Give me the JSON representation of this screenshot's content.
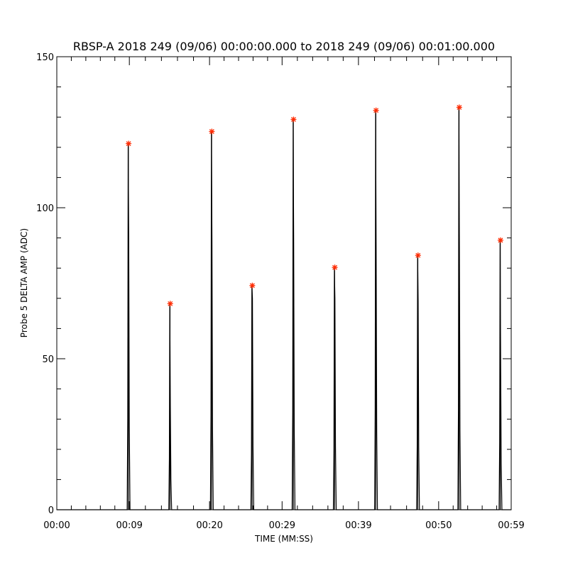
{
  "chart_data": {
    "type": "line",
    "title": "RBSP-A 2018 249 (09/06) 00:00:00.000 to 2018 249 (09/06) 00:01:00.000",
    "xlabel": "TIME (MM:SS)",
    "ylabel": "Probe 5 DELTA AMP (ADC)",
    "xlim_seconds": [
      0,
      59.5
    ],
    "ylim": [
      0,
      150
    ],
    "x_ticks": [
      {
        "value": 0,
        "label": "00:00"
      },
      {
        "value": 9.5,
        "label": "00:09"
      },
      {
        "value": 20,
        "label": "00:20"
      },
      {
        "value": 29.5,
        "label": "00:29"
      },
      {
        "value": 39.5,
        "label": "00:39"
      },
      {
        "value": 50,
        "label": "00:50"
      },
      {
        "value": 59.5,
        "label": "00:59"
      }
    ],
    "y_ticks": [
      0,
      50,
      100,
      150
    ],
    "y_minor_step": 10,
    "grid": false,
    "series": [
      {
        "values_desc": "pulse trace",
        "color": "#000000",
        "pulses": [
          {
            "t": 9.4,
            "peak": 121,
            "second": 91
          },
          {
            "t": 14.85,
            "peak": 68,
            "second": 34
          },
          {
            "t": 20.3,
            "peak": 125,
            "second": 89
          },
          {
            "t": 25.6,
            "peak": 74,
            "second": 70
          },
          {
            "t": 31.0,
            "peak": 129,
            "second": 88
          },
          {
            "t": 36.4,
            "peak": 80,
            "second": 70
          },
          {
            "t": 41.8,
            "peak": 132,
            "second": 86
          },
          {
            "t": 47.3,
            "peak": 84,
            "second": 69
          },
          {
            "t": 52.7,
            "peak": 133,
            "second": 87
          },
          {
            "t": 58.1,
            "peak": 89,
            "second": 50
          }
        ]
      },
      {
        "values_desc": "peak markers",
        "color": "#ff2a00",
        "marker": "asterisk",
        "points": [
          {
            "t": 9.4,
            "y": 121
          },
          {
            "t": 14.85,
            "y": 68
          },
          {
            "t": 20.3,
            "y": 125
          },
          {
            "t": 25.6,
            "y": 74
          },
          {
            "t": 31.0,
            "y": 129
          },
          {
            "t": 36.4,
            "y": 80
          },
          {
            "t": 41.8,
            "y": 132
          },
          {
            "t": 47.3,
            "y": 84
          },
          {
            "t": 52.7,
            "y": 133
          },
          {
            "t": 58.1,
            "y": 89
          }
        ]
      }
    ]
  }
}
